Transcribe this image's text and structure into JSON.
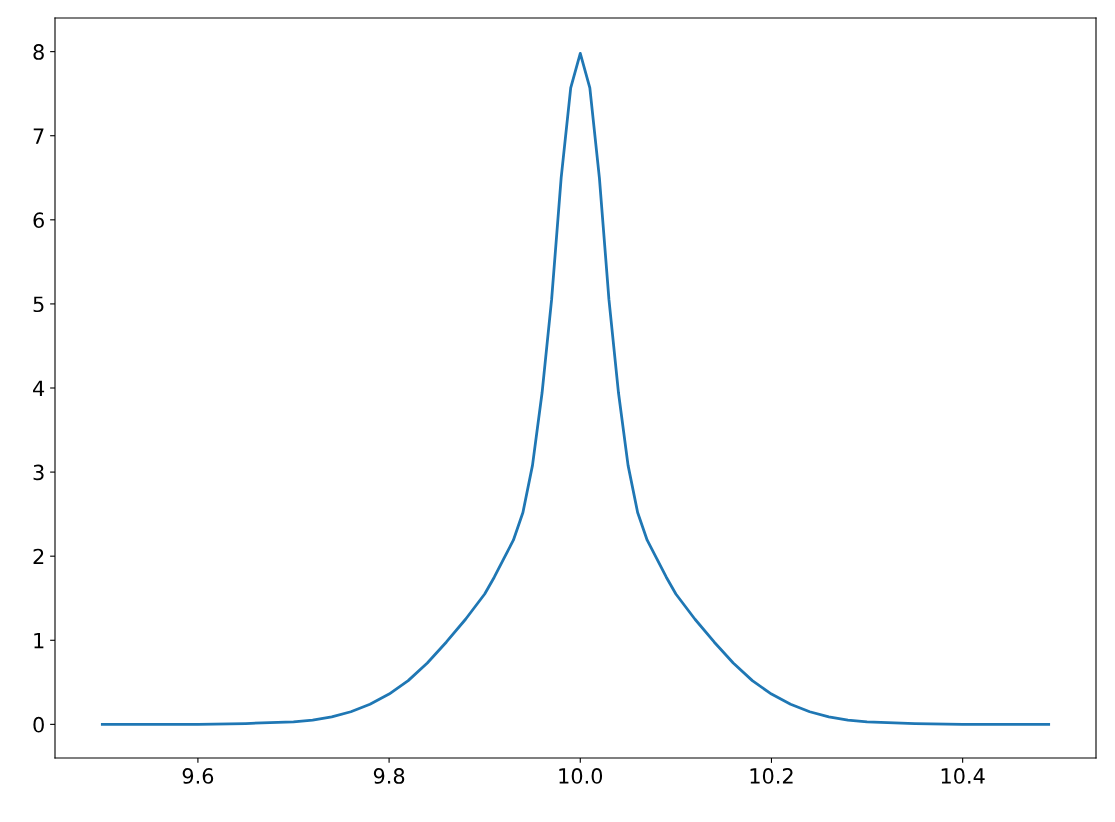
{
  "chart_data": {
    "type": "line",
    "x": [
      9.5,
      9.6,
      9.65,
      9.7,
      9.72,
      9.74,
      9.76,
      9.78,
      9.8,
      9.82,
      9.84,
      9.86,
      9.88,
      9.9,
      9.91,
      9.92,
      9.93,
      9.94,
      9.95,
      9.96,
      9.97,
      9.98,
      9.99,
      10.0,
      10.01,
      10.02,
      10.03,
      10.04,
      10.05,
      10.06,
      10.07,
      10.08,
      10.09,
      10.1,
      10.12,
      10.14,
      10.16,
      10.18,
      10.2,
      10.22,
      10.24,
      10.26,
      10.28,
      10.3,
      10.35,
      10.4,
      10.49
    ],
    "series": [
      {
        "color": "#1f77b4",
        "values": [
          0.0,
          0.0,
          0.01,
          0.03,
          0.05,
          0.09,
          0.15,
          0.24,
          0.36,
          0.52,
          0.73,
          0.98,
          1.25,
          1.55,
          1.75,
          1.97,
          2.19,
          2.52,
          3.08,
          3.94,
          5.05,
          6.5,
          7.57,
          7.98,
          7.57,
          6.5,
          5.05,
          3.94,
          3.08,
          2.52,
          2.19,
          1.97,
          1.75,
          1.55,
          1.25,
          0.98,
          0.73,
          0.52,
          0.36,
          0.24,
          0.15,
          0.09,
          0.05,
          0.03,
          0.01,
          0.0,
          0.0
        ]
      }
    ],
    "xlim": [
      9.4505,
      10.5395
    ],
    "ylim": [
      -0.4,
      8.4
    ],
    "xticks": [
      {
        "value": 9.6,
        "label": "9.6"
      },
      {
        "value": 9.8,
        "label": "9.8"
      },
      {
        "value": 10.0,
        "label": "10.0"
      },
      {
        "value": 10.2,
        "label": "10.2"
      },
      {
        "value": 10.4,
        "label": "10.4"
      }
    ],
    "yticks": [
      0,
      1,
      2,
      3,
      4,
      5,
      6,
      7,
      8
    ],
    "grid": false,
    "legend": false,
    "line_style": "solid",
    "marker": "none"
  }
}
